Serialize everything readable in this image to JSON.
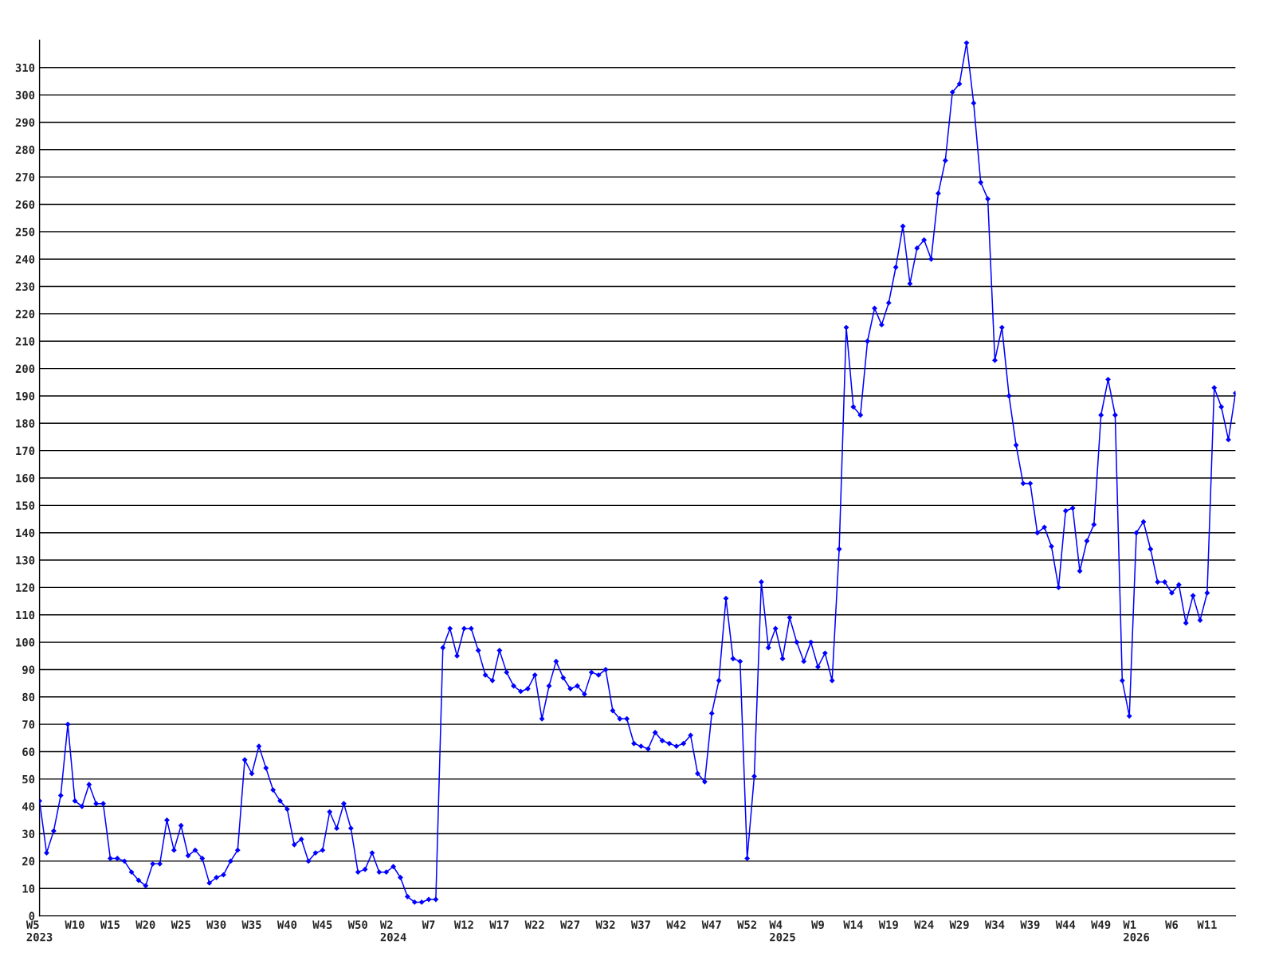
{
  "chart_data": {
    "type": "line",
    "categories": [
      "W5\n2023",
      null,
      null,
      null,
      null,
      "W10",
      null,
      null,
      null,
      null,
      "W15",
      null,
      null,
      null,
      null,
      "W20",
      null,
      null,
      null,
      null,
      "W25",
      null,
      null,
      null,
      null,
      "W30",
      null,
      null,
      null,
      null,
      "W35",
      null,
      null,
      null,
      null,
      "W40",
      null,
      null,
      null,
      null,
      "W45",
      null,
      null,
      null,
      null,
      "W50",
      null,
      null,
      null,
      null,
      "W2\n2024",
      null,
      null,
      null,
      null,
      "W7",
      null,
      null,
      null,
      null,
      "W12",
      null,
      null,
      null,
      null,
      "W17",
      null,
      null,
      null,
      null,
      "W22",
      null,
      null,
      null,
      null,
      "W27",
      null,
      null,
      null,
      null,
      "W32",
      null,
      null,
      null,
      null,
      "W37",
      null,
      null,
      null,
      null,
      "W42",
      null,
      null,
      null,
      null,
      "W47",
      null,
      null,
      null,
      null,
      "W52",
      null,
      null,
      null,
      null,
      "W4\n2025",
      null,
      null,
      null,
      null,
      "W9",
      null,
      null,
      null,
      null,
      "W14",
      null,
      null,
      null,
      null,
      "W19",
      null,
      null,
      null,
      null,
      "W24",
      null,
      null,
      null,
      null,
      "W29",
      null,
      null,
      null,
      null,
      "W34",
      null,
      null,
      null,
      null,
      "W39",
      null,
      null,
      null,
      null,
      "W44",
      null,
      null,
      null,
      null,
      "W49",
      null,
      null,
      null,
      null,
      "W1\n2026",
      null,
      null,
      null,
      null,
      "W6",
      null,
      null,
      null,
      null,
      "W11",
      null,
      null,
      null,
      null
    ],
    "series": [
      {
        "color": "#0000ff",
        "values": [
          42,
          23,
          31,
          44,
          70,
          42,
          40,
          48,
          41,
          41,
          21,
          21,
          20,
          16,
          13,
          11,
          19,
          19,
          35,
          24,
          33,
          22,
          24,
          21,
          12,
          14,
          15,
          20,
          24,
          57,
          52,
          62,
          54,
          46,
          42,
          39,
          26,
          28,
          20,
          23,
          24,
          38,
          32,
          41,
          32,
          16,
          17,
          23,
          16,
          16,
          18,
          14,
          7,
          5,
          5,
          6,
          6,
          98,
          105,
          95,
          105,
          105,
          97,
          88,
          86,
          97,
          89,
          84,
          82,
          83,
          88,
          72,
          84,
          93,
          87,
          83,
          84,
          81,
          89,
          88,
          90,
          75,
          72,
          72,
          63,
          62,
          61,
          67,
          64,
          63,
          62,
          63,
          66,
          52,
          49,
          74,
          86,
          116,
          94,
          93,
          21,
          51,
          122,
          98,
          105,
          94,
          109,
          100,
          93,
          100,
          91,
          96,
          86,
          134,
          215,
          186,
          183,
          210,
          222,
          216,
          224,
          237,
          252,
          231,
          244,
          247,
          240,
          264,
          276,
          301,
          304,
          319,
          297,
          268,
          262,
          203,
          215,
          190,
          172,
          158,
          158,
          140,
          142,
          135,
          120,
          148,
          149,
          126,
          137,
          143,
          183,
          196,
          183,
          86,
          73,
          140,
          144,
          134,
          122,
          122,
          118,
          121,
          107,
          117,
          108,
          118,
          193,
          186,
          174,
          191
        ]
      }
    ],
    "ylim": [
      0,
      320
    ],
    "yticks": [
      0,
      10,
      20,
      30,
      40,
      50,
      60,
      70,
      80,
      90,
      100,
      110,
      120,
      130,
      140,
      150,
      160,
      170,
      180,
      190,
      200,
      210,
      220,
      230,
      240,
      250,
      260,
      270,
      280,
      290,
      300,
      310
    ],
    "grid": "y",
    "marker": "diamond",
    "line_style": "solid"
  }
}
